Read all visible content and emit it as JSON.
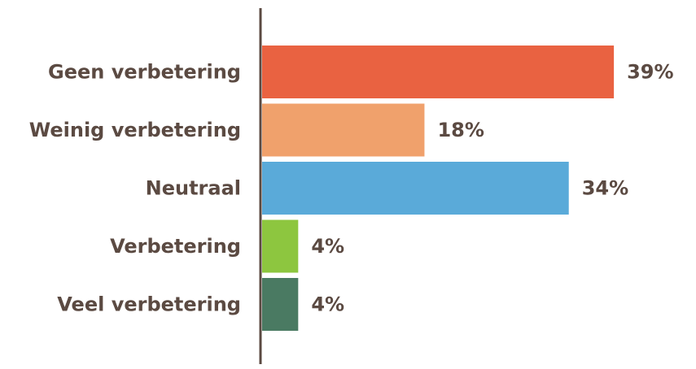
{
  "chart_data": {
    "type": "bar",
    "orientation": "horizontal",
    "categories": [
      "Geen verbetering",
      "Weinig verbetering",
      "Neutraal",
      "Verbetering",
      "Veel verbetering"
    ],
    "values": [
      39,
      18,
      34,
      4,
      4
    ],
    "value_labels": [
      "39%",
      "18%",
      "34%",
      "4%",
      "4%"
    ],
    "colors": [
      "#e96241",
      "#f0a16c",
      "#5aaad9",
      "#8dc63f",
      "#4a7a62"
    ],
    "title": "",
    "xlabel": "",
    "ylabel": "",
    "xlim": [
      0,
      40
    ],
    "grid": false,
    "legend": "none"
  },
  "style": {
    "text_color": "#5b4a42",
    "axis_color": "#5b4a42",
    "background": "#ffffff"
  }
}
